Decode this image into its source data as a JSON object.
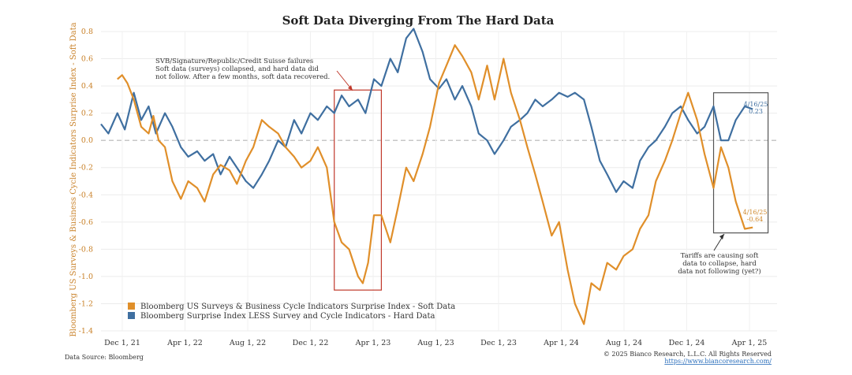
{
  "chart_data": {
    "type": "line",
    "title": "Soft Data Diverging From The Hard Data",
    "ylabel": "Bloomberg US Surveys & Business Cycle Indicators Surprise Index - Soft Data",
    "ylim": [
      -1.4,
      0.8
    ],
    "y_ticks": [
      "0.8",
      "0.6",
      "0.4",
      "0.2",
      "0.0",
      "-0.2",
      "-0.4",
      "-0.6",
      "-0.8",
      "-1.0",
      "-1.2",
      "-1.4"
    ],
    "x_ticks": [
      "Dec 1, 21",
      "Apr 1, 22",
      "Aug 1, 22",
      "Dec 1, 22",
      "Apr 1, 23",
      "Aug 1, 23",
      "Dec 1, 23",
      "Apr 1, 24",
      "Aug 1, 24",
      "Dec 1, 24",
      "Apr 1, 25"
    ],
    "x_range": [
      "2021-12-01",
      "2025-06-01"
    ],
    "grid": true,
    "zero_line": "dashed",
    "legend_position": "bottom-left",
    "series": [
      {
        "name": "Bloomberg US Surveys & Business Cycle Indicators Surprise Index - Soft Data",
        "color": "#e08f2a",
        "points": [
          [
            "2022-01-01",
            0.45
          ],
          [
            "2022-01-10",
            0.48
          ],
          [
            "2022-01-20",
            0.42
          ],
          [
            "2022-02-01",
            0.3
          ],
          [
            "2022-02-15",
            0.1
          ],
          [
            "2022-03-01",
            0.05
          ],
          [
            "2022-03-10",
            0.18
          ],
          [
            "2022-03-20",
            0.0
          ],
          [
            "2022-04-01",
            -0.05
          ],
          [
            "2022-04-15",
            -0.3
          ],
          [
            "2022-05-01",
            -0.43
          ],
          [
            "2022-05-15",
            -0.3
          ],
          [
            "2022-06-01",
            -0.35
          ],
          [
            "2022-06-15",
            -0.45
          ],
          [
            "2022-07-01",
            -0.25
          ],
          [
            "2022-07-15",
            -0.18
          ],
          [
            "2022-08-01",
            -0.22
          ],
          [
            "2022-08-15",
            -0.32
          ],
          [
            "2022-09-01",
            -0.15
          ],
          [
            "2022-09-15",
            -0.05
          ],
          [
            "2022-10-01",
            0.15
          ],
          [
            "2022-10-15",
            0.1
          ],
          [
            "2022-11-01",
            0.05
          ],
          [
            "2022-11-15",
            -0.05
          ],
          [
            "2022-12-01",
            -0.12
          ],
          [
            "2022-12-15",
            -0.2
          ],
          [
            "2023-01-01",
            -0.15
          ],
          [
            "2023-01-15",
            -0.05
          ],
          [
            "2023-02-01",
            -0.2
          ],
          [
            "2023-02-15",
            -0.6
          ],
          [
            "2023-03-01",
            -0.75
          ],
          [
            "2023-03-15",
            -0.8
          ],
          [
            "2023-04-01",
            -1.0
          ],
          [
            "2023-04-10",
            -1.05
          ],
          [
            "2023-04-20",
            -0.9
          ],
          [
            "2023-05-01",
            -0.55
          ],
          [
            "2023-05-15",
            -0.55
          ],
          [
            "2023-06-01",
            -0.75
          ],
          [
            "2023-06-15",
            -0.5
          ],
          [
            "2023-07-01",
            -0.2
          ],
          [
            "2023-07-15",
            -0.3
          ],
          [
            "2023-08-01",
            -0.1
          ],
          [
            "2023-08-15",
            0.1
          ],
          [
            "2023-09-01",
            0.42
          ],
          [
            "2023-09-15",
            0.55
          ],
          [
            "2023-10-01",
            0.7
          ],
          [
            "2023-10-15",
            0.62
          ],
          [
            "2023-11-01",
            0.5
          ],
          [
            "2023-11-15",
            0.3
          ],
          [
            "2023-12-01",
            0.55
          ],
          [
            "2023-12-15",
            0.3
          ],
          [
            "2024-01-01",
            0.6
          ],
          [
            "2024-01-15",
            0.35
          ],
          [
            "2024-02-01",
            0.15
          ],
          [
            "2024-02-15",
            -0.05
          ],
          [
            "2024-03-01",
            -0.25
          ],
          [
            "2024-03-15",
            -0.45
          ],
          [
            "2024-04-01",
            -0.7
          ],
          [
            "2024-04-15",
            -0.6
          ],
          [
            "2024-05-01",
            -0.95
          ],
          [
            "2024-05-15",
            -1.2
          ],
          [
            "2024-06-01",
            -1.35
          ],
          [
            "2024-06-15",
            -1.05
          ],
          [
            "2024-07-01",
            -1.1
          ],
          [
            "2024-07-15",
            -0.9
          ],
          [
            "2024-08-01",
            -0.95
          ],
          [
            "2024-08-15",
            -0.85
          ],
          [
            "2024-09-01",
            -0.8
          ],
          [
            "2024-09-15",
            -0.65
          ],
          [
            "2024-10-01",
            -0.55
          ],
          [
            "2024-10-15",
            -0.3
          ],
          [
            "2024-11-01",
            -0.15
          ],
          [
            "2024-11-15",
            0.0
          ],
          [
            "2024-12-01",
            0.2
          ],
          [
            "2024-12-15",
            0.35
          ],
          [
            "2025-01-01",
            0.15
          ],
          [
            "2025-01-15",
            -0.1
          ],
          [
            "2025-02-01",
            -0.35
          ],
          [
            "2025-02-15",
            -0.05
          ],
          [
            "2025-03-01",
            -0.2
          ],
          [
            "2025-03-15",
            -0.45
          ],
          [
            "2025-04-01",
            -0.65
          ],
          [
            "2025-04-16",
            -0.64
          ]
        ]
      },
      {
        "name": "Bloomberg Surprise Index LESS Survey and Cycle Indicators - Hard Data",
        "color": "#3f6fa0",
        "points": [
          [
            "2021-12-01",
            0.12
          ],
          [
            "2021-12-15",
            0.05
          ],
          [
            "2022-01-01",
            0.2
          ],
          [
            "2022-01-15",
            0.08
          ],
          [
            "2022-02-01",
            0.35
          ],
          [
            "2022-02-15",
            0.15
          ],
          [
            "2022-03-01",
            0.25
          ],
          [
            "2022-03-15",
            0.05
          ],
          [
            "2022-04-01",
            0.2
          ],
          [
            "2022-04-15",
            0.1
          ],
          [
            "2022-05-01",
            -0.05
          ],
          [
            "2022-05-15",
            -0.12
          ],
          [
            "2022-06-01",
            -0.08
          ],
          [
            "2022-06-15",
            -0.15
          ],
          [
            "2022-07-01",
            -0.1
          ],
          [
            "2022-07-15",
            -0.25
          ],
          [
            "2022-08-01",
            -0.12
          ],
          [
            "2022-08-15",
            -0.2
          ],
          [
            "2022-09-01",
            -0.3
          ],
          [
            "2022-09-15",
            -0.35
          ],
          [
            "2022-10-01",
            -0.25
          ],
          [
            "2022-10-15",
            -0.15
          ],
          [
            "2022-11-01",
            0.0
          ],
          [
            "2022-11-15",
            -0.05
          ],
          [
            "2022-12-01",
            0.15
          ],
          [
            "2022-12-15",
            0.05
          ],
          [
            "2023-01-01",
            0.2
          ],
          [
            "2023-01-15",
            0.15
          ],
          [
            "2023-02-01",
            0.25
          ],
          [
            "2023-02-15",
            0.2
          ],
          [
            "2023-03-01",
            0.33
          ],
          [
            "2023-03-15",
            0.25
          ],
          [
            "2023-04-01",
            0.3
          ],
          [
            "2023-04-15",
            0.2
          ],
          [
            "2023-05-01",
            0.45
          ],
          [
            "2023-05-15",
            0.4
          ],
          [
            "2023-06-01",
            0.6
          ],
          [
            "2023-06-15",
            0.5
          ],
          [
            "2023-07-01",
            0.75
          ],
          [
            "2023-07-15",
            0.82
          ],
          [
            "2023-08-01",
            0.65
          ],
          [
            "2023-08-15",
            0.45
          ],
          [
            "2023-09-01",
            0.38
          ],
          [
            "2023-09-15",
            0.45
          ],
          [
            "2023-10-01",
            0.3
          ],
          [
            "2023-10-15",
            0.4
          ],
          [
            "2023-11-01",
            0.25
          ],
          [
            "2023-11-15",
            0.05
          ],
          [
            "2023-12-01",
            0.0
          ],
          [
            "2023-12-15",
            -0.1
          ],
          [
            "2024-01-01",
            0.0
          ],
          [
            "2024-01-15",
            0.1
          ],
          [
            "2024-02-01",
            0.15
          ],
          [
            "2024-02-15",
            0.2
          ],
          [
            "2024-03-01",
            0.3
          ],
          [
            "2024-03-15",
            0.25
          ],
          [
            "2024-04-01",
            0.3
          ],
          [
            "2024-04-15",
            0.35
          ],
          [
            "2024-05-01",
            0.32
          ],
          [
            "2024-05-15",
            0.35
          ],
          [
            "2024-06-01",
            0.3
          ],
          [
            "2024-06-15",
            0.1
          ],
          [
            "2024-07-01",
            -0.15
          ],
          [
            "2024-07-15",
            -0.25
          ],
          [
            "2024-08-01",
            -0.38
          ],
          [
            "2024-08-15",
            -0.3
          ],
          [
            "2024-09-01",
            -0.35
          ],
          [
            "2024-09-15",
            -0.15
          ],
          [
            "2024-10-01",
            -0.05
          ],
          [
            "2024-10-15",
            0.0
          ],
          [
            "2024-11-01",
            0.1
          ],
          [
            "2024-11-15",
            0.2
          ],
          [
            "2024-12-01",
            0.25
          ],
          [
            "2024-12-15",
            0.15
          ],
          [
            "2025-01-01",
            0.05
          ],
          [
            "2025-01-15",
            0.1
          ],
          [
            "2025-02-01",
            0.25
          ],
          [
            "2025-02-15",
            0.0
          ],
          [
            "2025-03-01",
            0.0
          ],
          [
            "2025-03-15",
            0.15
          ],
          [
            "2025-04-01",
            0.25
          ],
          [
            "2025-04-16",
            0.23
          ]
        ]
      }
    ],
    "annotations": {
      "svb": [
        "SVB/Signature/Republic/Credit Suisse failures",
        "Soft data (surveys) collapsed, and hard data did",
        "not follow. After a few months, soft data recovered."
      ],
      "tariffs": [
        "Tariffs are causing soft",
        "data to collapse, hard",
        "data not following (yet?)"
      ],
      "last_hard": [
        "4/16/25",
        "0.23"
      ],
      "last_soft": [
        "4/16/25",
        "-0.64"
      ]
    },
    "highlight_boxes": [
      {
        "x_start": "2023-02-15",
        "x_end": "2023-05-15",
        "y_top": 0.37,
        "y_bottom": -1.1,
        "color": "#c0392b"
      },
      {
        "x_start": "2025-02-01",
        "x_end": "2025-05-15",
        "y_top": 0.35,
        "y_bottom": -0.68,
        "color": "#555555"
      }
    ]
  },
  "footer": {
    "source": "Data Source: Bloomberg",
    "copyright": "© 2025 Bianco Research, L.L.C. All Rights Reserved",
    "url": "https://www.biancoresearch.com/"
  }
}
